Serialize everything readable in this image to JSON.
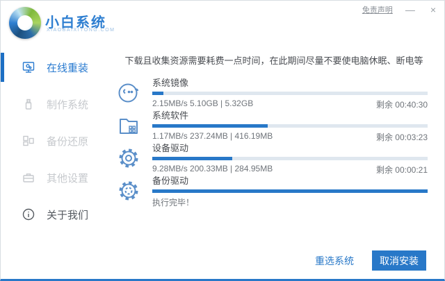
{
  "window": {
    "disclaimer": "免责声明",
    "minimize": "—",
    "close": "×"
  },
  "brand": {
    "title": "小白系统",
    "tagline": "XIAOBAIXITONG.COM"
  },
  "sidebar": {
    "items": [
      {
        "label": "在线重装",
        "icon": "monitor-reinstall-icon",
        "active": true
      },
      {
        "label": "制作系统",
        "icon": "usb-drive-icon",
        "active": false
      },
      {
        "label": "备份还原",
        "icon": "backup-restore-icon",
        "active": false
      },
      {
        "label": "其他设置",
        "icon": "toolbox-icon",
        "active": false
      },
      {
        "label": "关于我们",
        "icon": "info-icon",
        "active": false
      }
    ]
  },
  "main": {
    "notice": "下载且收集资源需要耗费一点时间，在此期间尽量不要使电脑休眠、断电等",
    "tasks": [
      {
        "name": "系统镜像",
        "icon": "mascot-face-icon",
        "progress": 4,
        "stats": "2.15MB/s 5.10GB | 5.32GB",
        "remaining": "剩余 00:40:30"
      },
      {
        "name": "系统软件",
        "icon": "software-folder-icon",
        "progress": 42,
        "stats": "1.17MB/s 237.24MB | 416.19MB",
        "remaining": "剩余 00:03:23"
      },
      {
        "name": "设备驱动",
        "icon": "gear-icon",
        "progress": 29,
        "stats": "9.28MB/s 200.33MB | 284.95MB",
        "remaining": "剩余 00:00:21"
      },
      {
        "name": "备份驱动",
        "icon": "gear-dashed-icon",
        "progress": 100,
        "stats": "执行完毕！",
        "remaining": ""
      }
    ],
    "buttons": {
      "reselect": "重选系统",
      "cancel": "取消安装"
    }
  },
  "colors": {
    "accent": "#2878c8",
    "progress_track": "#dfe7ef",
    "brand_blue": "#2f7fd1",
    "inactive_gray": "#c6c9cd"
  }
}
